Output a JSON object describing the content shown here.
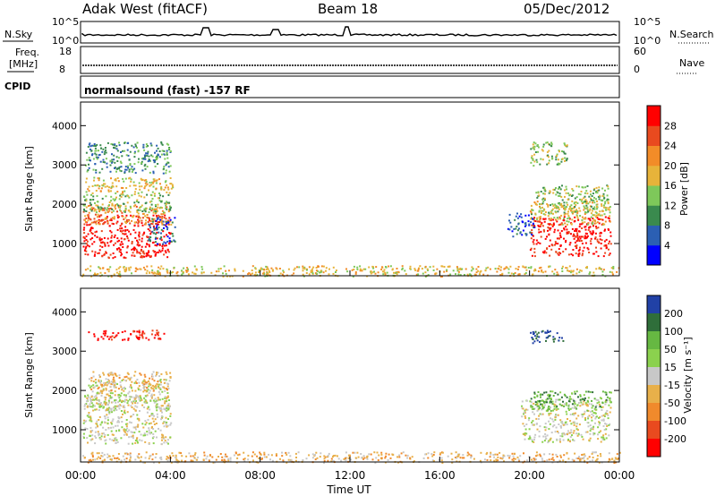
{
  "header": {
    "station": "Adak West (fitACF)",
    "beam": "Beam 18",
    "date": "05/Dec/2012"
  },
  "top_panels": {
    "nsky_label": "N.Sky",
    "nsearch_label": "N.Search",
    "freq_label_1": "Freq.",
    "freq_label_2": "[MHz]",
    "nave_label": "Nave",
    "cpid_label": "CPID",
    "cpid_text": "normalsound (fast) -157 RF",
    "noise_ticks_left": [
      "10^5",
      "10^0"
    ],
    "noise_ticks_right": [
      "10^5",
      "10^0"
    ],
    "freq_ticks": [
      "18",
      "8"
    ],
    "nave_ticks": [
      "60",
      "0"
    ]
  },
  "chart_data": [
    {
      "type": "heatmap",
      "panel": "power",
      "ylabel": "Slant Range [km]",
      "yticks": [
        "1000",
        "2000",
        "3000",
        "4000"
      ],
      "ylim": [
        180,
        4600
      ],
      "xlim_hours": [
        0,
        24
      ],
      "colorbar": {
        "label": "Power [dB]",
        "ticks": [
          "4",
          "8",
          "12",
          "16",
          "20",
          "24",
          "28"
        ],
        "colors": [
          "#0000ff",
          "#2b5fb3",
          "#3a8a4e",
          "#7ec85a",
          "#e7b33a",
          "#f28c28",
          "#e94a1f",
          "#ff0000"
        ],
        "range": [
          0,
          32
        ]
      },
      "regions": [
        {
          "t0": 0.1,
          "t1": 4.0,
          "r0": 650,
          "r1": 1750,
          "c": 7
        },
        {
          "t0": 0.1,
          "t1": 4.0,
          "r0": 1500,
          "r1": 2000,
          "c": 5
        },
        {
          "t0": 0.1,
          "t1": 4.0,
          "r0": 1800,
          "r1": 2300,
          "c": 3
        },
        {
          "t0": 0.2,
          "t1": 4.1,
          "r0": 2300,
          "r1": 2700,
          "c": 4
        },
        {
          "t0": 0.2,
          "t1": 4.0,
          "r0": 2800,
          "r1": 3600,
          "c": 2
        },
        {
          "t0": 3.0,
          "t1": 4.2,
          "r0": 1000,
          "r1": 1700,
          "c": 1
        },
        {
          "t0": 19.0,
          "t1": 20.2,
          "r0": 1200,
          "r1": 1800,
          "c": 1
        },
        {
          "t0": 20.0,
          "t1": 23.6,
          "r0": 700,
          "r1": 1700,
          "c": 7
        },
        {
          "t0": 20.0,
          "t1": 23.6,
          "r0": 1500,
          "r1": 2100,
          "c": 4
        },
        {
          "t0": 20.2,
          "t1": 23.6,
          "r0": 1800,
          "r1": 2500,
          "c": 3
        },
        {
          "t0": 20.0,
          "t1": 21.7,
          "r0": 3000,
          "r1": 3600,
          "c": 3
        },
        {
          "t0": 0.0,
          "t1": 24.0,
          "r0": 180,
          "r1": 450,
          "c": 4
        }
      ]
    },
    {
      "type": "heatmap",
      "panel": "velocity",
      "ylabel": "Slant Range [km]",
      "yticks": [
        "1000",
        "2000",
        "3000",
        "4000"
      ],
      "ylim": [
        180,
        4600
      ],
      "xlim_hours": [
        0,
        24
      ],
      "xticks": [
        "00:00",
        "04:00",
        "08:00",
        "12:00",
        "16:00",
        "20:00",
        "00:00"
      ],
      "xlabel": "Time UT",
      "colorbar": {
        "label": "Velocity [m s⁻¹]",
        "ticks": [
          "200",
          "100",
          "50",
          "15",
          "-15",
          "-50",
          "-100",
          "-200"
        ],
        "colors": [
          "#2141a6",
          "#2f6e3a",
          "#66b842",
          "#8bd14e",
          "#c8c8c8",
          "#e8b04a",
          "#f08a2c",
          "#e94a1f",
          "#ff0000"
        ]
      },
      "regions": [
        {
          "t0": 0.1,
          "t1": 4.0,
          "r0": 650,
          "r1": 1900,
          "c": 4
        },
        {
          "t0": 0.2,
          "t1": 3.9,
          "r0": 1500,
          "r1": 2300,
          "c": 4
        },
        {
          "t0": 0.3,
          "t1": 4.0,
          "r0": 2000,
          "r1": 2500,
          "c": 5
        },
        {
          "t0": 0.3,
          "t1": 3.8,
          "r0": 3300,
          "r1": 3550,
          "c": 8
        },
        {
          "t0": 19.6,
          "t1": 23.6,
          "r0": 700,
          "r1": 1800,
          "c": 4
        },
        {
          "t0": 20.0,
          "t1": 23.6,
          "r0": 1500,
          "r1": 2000,
          "c": 2
        },
        {
          "t0": 20.0,
          "t1": 21.5,
          "r0": 3200,
          "r1": 3550,
          "c": 0
        },
        {
          "t0": 0.0,
          "t1": 24.0,
          "r0": 180,
          "r1": 450,
          "c": 5
        }
      ]
    }
  ]
}
